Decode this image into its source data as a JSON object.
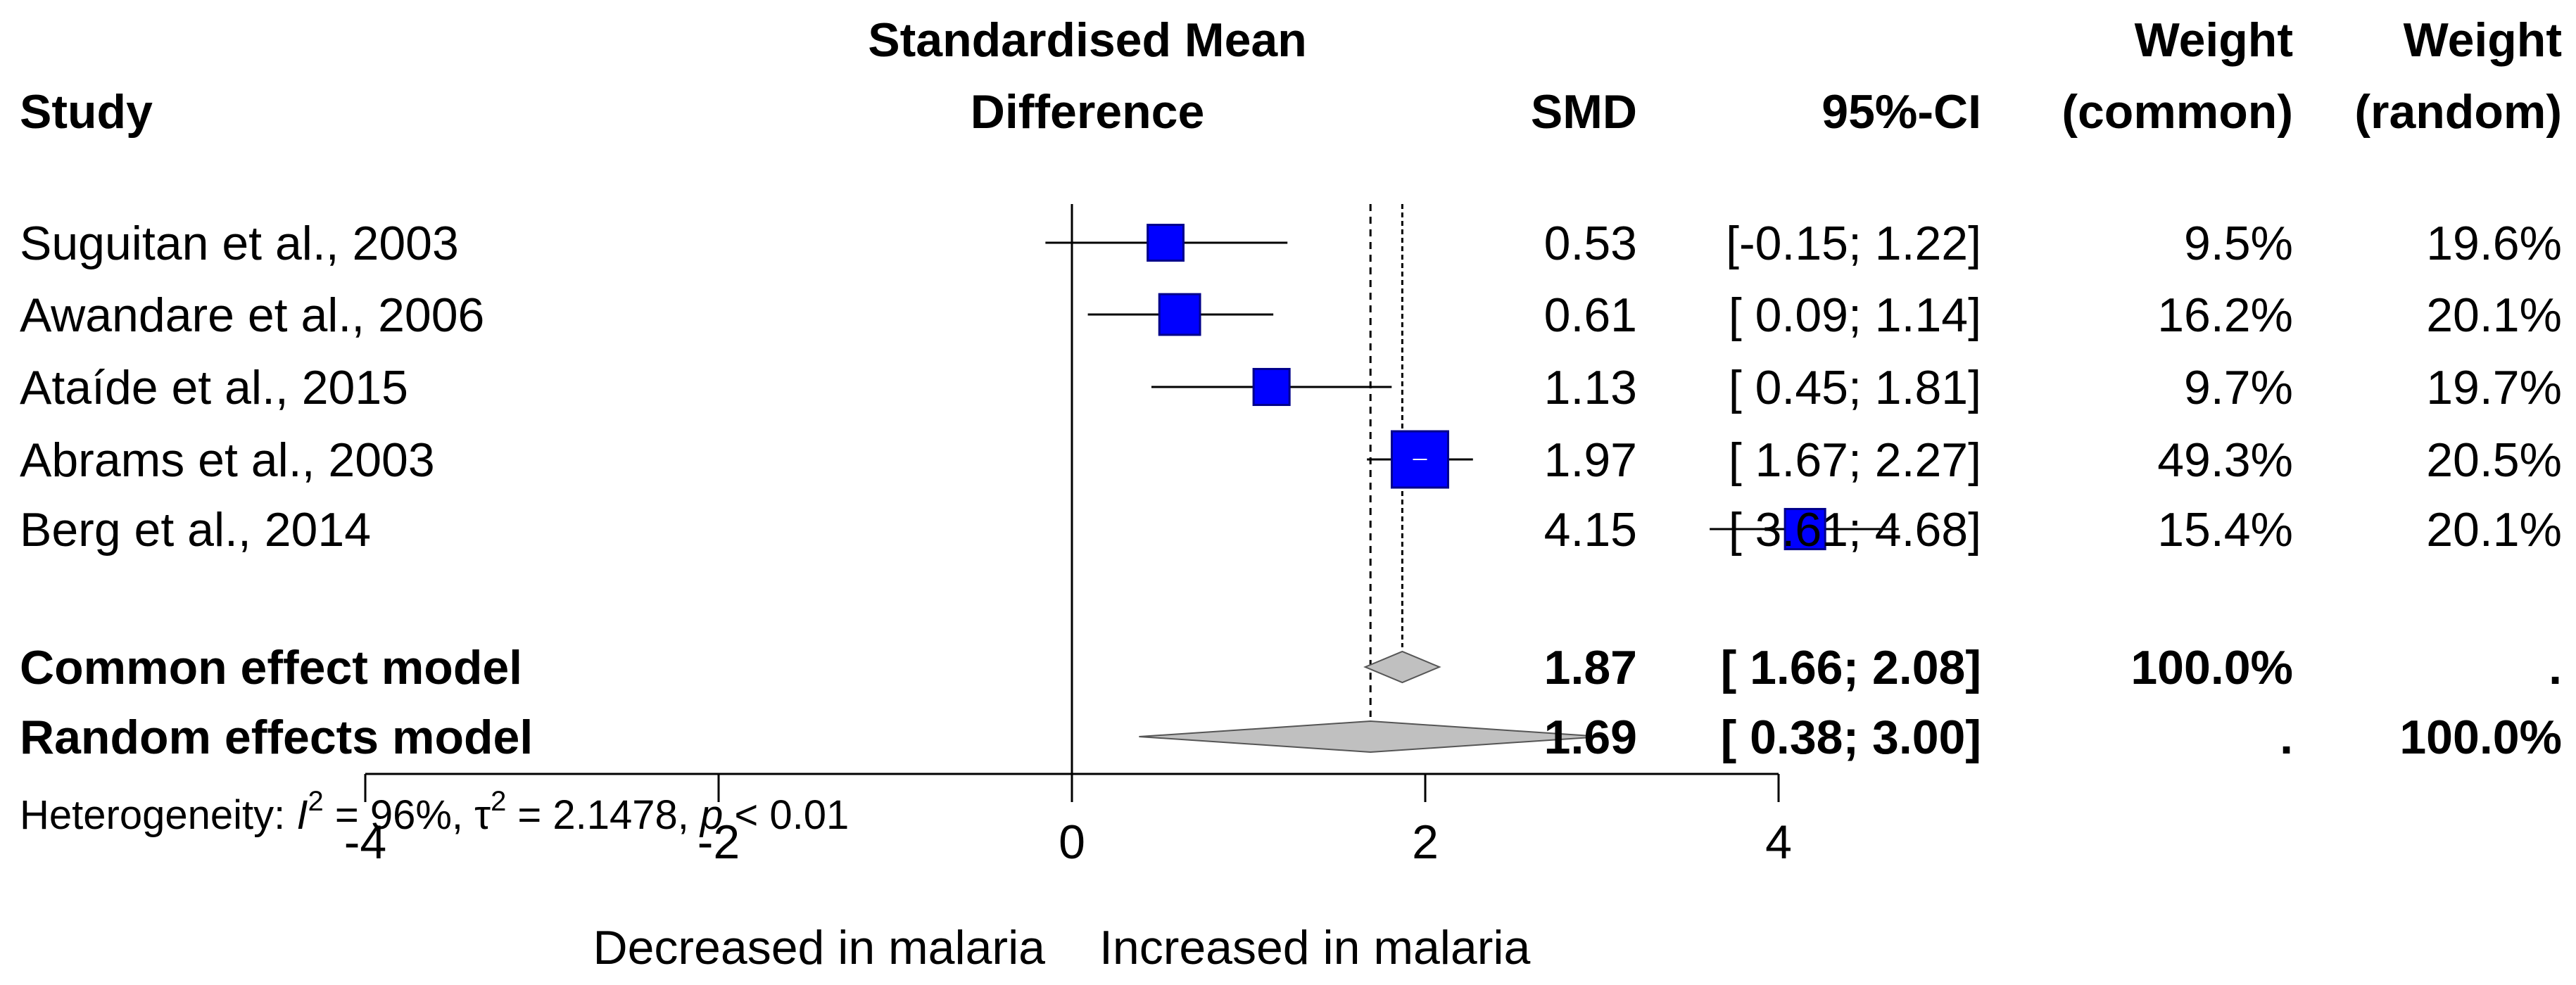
{
  "chart_data": {
    "type": "forest",
    "header": {
      "study": "Study",
      "plot_title_line1": "Standardised Mean",
      "plot_title_line2": "Difference",
      "smd": "SMD",
      "ci": "95%-CI",
      "weight_common_line1": "Weight",
      "weight_common_line2": "(common)",
      "weight_random_line1": "Weight",
      "weight_random_line2": "(random)"
    },
    "studies": [
      {
        "label": "Suguitan et al., 2003",
        "smd": 0.53,
        "lower": -0.15,
        "upper": 1.22,
        "smd_text": "0.53",
        "ci_text": "[-0.15; 1.22]",
        "weight_common": "9.5%",
        "weight_random": "19.6%",
        "weight_value": 9.5
      },
      {
        "label": "Awandare et al., 2006",
        "smd": 0.61,
        "lower": 0.09,
        "upper": 1.14,
        "smd_text": "0.61",
        "ci_text": "[ 0.09; 1.14]",
        "weight_common": "16.2%",
        "weight_random": "20.1%",
        "weight_value": 16.2
      },
      {
        "label": "Ataíde et al., 2015",
        "smd": 1.13,
        "lower": 0.45,
        "upper": 1.81,
        "smd_text": "1.13",
        "ci_text": "[ 0.45; 1.81]",
        "weight_common": "9.7%",
        "weight_random": "19.7%",
        "weight_value": 9.7
      },
      {
        "label": "Abrams et al., 2003",
        "smd": 1.97,
        "lower": 1.67,
        "upper": 2.27,
        "smd_text": "1.97",
        "ci_text": "[ 1.67; 2.27]",
        "weight_common": "49.3%",
        "weight_random": "20.5%",
        "weight_value": 49.3
      },
      {
        "label": "Berg et al., 2014",
        "smd": 4.15,
        "lower": 3.61,
        "upper": 4.68,
        "smd_text": "4.15",
        "ci_text": "[ 3.61; 4.68]",
        "weight_common": "15.4%",
        "weight_random": "20.1%",
        "weight_value": 15.4
      }
    ],
    "models": [
      {
        "label": "Common effect model",
        "smd": 1.87,
        "lower": 1.66,
        "upper": 2.08,
        "smd_text": "1.87",
        "ci_text": "[ 1.66; 2.08]",
        "weight_common": "100.0%",
        "weight_random": "."
      },
      {
        "label": "Random effects model",
        "smd": 1.69,
        "lower": 0.38,
        "upper": 3.0,
        "smd_text": "1.69",
        "ci_text": "[ 0.38; 3.00]",
        "weight_common": ".",
        "weight_random": "100.0%"
      }
    ],
    "heterogeneity": {
      "prefix": "Heterogeneity: ",
      "i2_symbol": "I",
      "i2_value": " = 96%, ",
      "tau2_symbol": "τ",
      "tau2_value": " = 2.1478, ",
      "p_symbol": "p",
      "p_value": " < 0.01",
      "superscript": "2"
    },
    "x_axis": {
      "xlim": [
        -4,
        4
      ],
      "ticks": [
        -4,
        -2,
        0,
        2,
        4
      ],
      "tick_labels": [
        "-4",
        "-2",
        "0",
        "2",
        "4"
      ],
      "label_left": "Decreased in malaria",
      "label_right": "Increased in malaria"
    },
    "colors": {
      "square": "#0000ff",
      "square_border": "#00008b",
      "diamond": "#c0c0c0",
      "line": "#000000"
    }
  }
}
